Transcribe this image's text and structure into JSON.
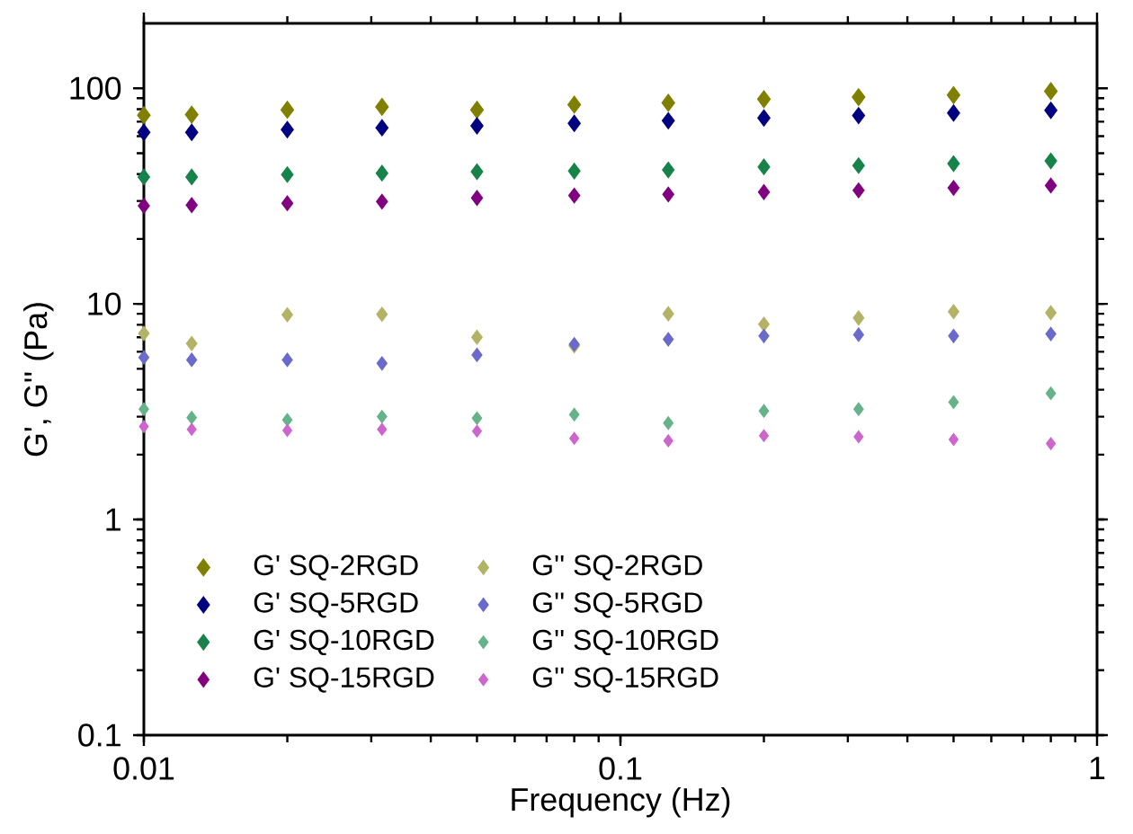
{
  "chart_data": {
    "type": "scatter",
    "xlabel": "Frequency (Hz)",
    "ylabel": "G', G'' (Pa)",
    "log": "xy",
    "xlim": [
      0.01,
      1
    ],
    "ylim": [
      0.1,
      200
    ],
    "xticks": [
      0.01,
      0.1,
      1
    ],
    "yticks": [
      0.1,
      1,
      10,
      100
    ],
    "grid": false,
    "legend": "bottom left",
    "marker": "diamond",
    "x": [
      0.01,
      0.0126,
      0.02,
      0.0316,
      0.05,
      0.08,
      0.126,
      0.2,
      0.316,
      0.5,
      0.8
    ],
    "series": [
      {
        "name": "G' SQ-2RGD",
        "color": "#808000",
        "values": [
          75,
          75.5,
          79.5,
          82,
          79.5,
          84,
          85.6,
          89,
          91,
          93,
          97
        ]
      },
      {
        "name": "G' SQ-5RGD",
        "color": "#000080",
        "values": [
          62.5,
          62.5,
          64.3,
          65.6,
          67,
          68.8,
          70.7,
          72.8,
          74.7,
          76.8,
          79
        ]
      },
      {
        "name": "G' SQ-10RGD",
        "color": "#17834a",
        "values": [
          38.8,
          38.8,
          39.8,
          40.4,
          41,
          41.3,
          41.8,
          43.2,
          43.8,
          44.7,
          46
        ]
      },
      {
        "name": "G' SQ-15RGD",
        "color": "#800080",
        "values": [
          28.5,
          28.7,
          29.3,
          29.8,
          31,
          31.8,
          32.2,
          33,
          33.6,
          34.5,
          35.4
        ]
      },
      {
        "name": "G'' SQ-2RGD",
        "color": "#b3b366",
        "values": [
          7.3,
          6.55,
          8.9,
          8.95,
          7.0,
          6.4,
          9.0,
          8.05,
          8.6,
          9.2,
          9.1
        ]
      },
      {
        "name": "G'' SQ-5RGD",
        "color": "#6a6acc",
        "values": [
          5.65,
          5.5,
          5.5,
          5.3,
          5.8,
          6.5,
          6.85,
          7.1,
          7.2,
          7.1,
          7.26
        ]
      },
      {
        "name": "G'' SQ-10RGD",
        "color": "#66b38a",
        "values": [
          3.25,
          2.97,
          2.9,
          3.0,
          2.95,
          3.07,
          2.8,
          3.19,
          3.25,
          3.5,
          3.85
        ]
      },
      {
        "name": "G'' SQ-15RGD",
        "color": "#cc66cc",
        "values": [
          2.7,
          2.62,
          2.59,
          2.62,
          2.57,
          2.38,
          2.32,
          2.45,
          2.42,
          2.35,
          2.25
        ]
      }
    ]
  }
}
